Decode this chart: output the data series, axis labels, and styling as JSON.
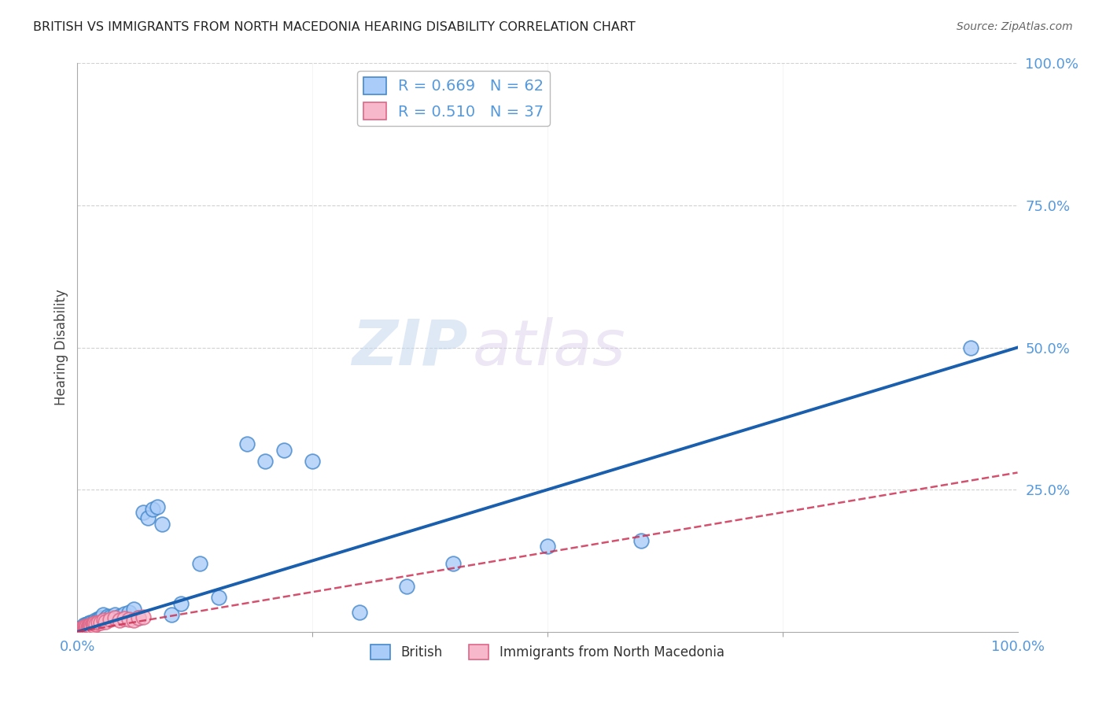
{
  "title": "BRITISH VS IMMIGRANTS FROM NORTH MACEDONIA HEARING DISABILITY CORRELATION CHART",
  "source": "Source: ZipAtlas.com",
  "ylabel": "Hearing Disability",
  "xlim": [
    0,
    1.0
  ],
  "ylim": [
    0,
    1.0
  ],
  "ytick_positions": [
    0.0,
    0.25,
    0.5,
    0.75,
    1.0
  ],
  "ytick_labels": [
    "",
    "25.0%",
    "50.0%",
    "75.0%",
    "100.0%"
  ],
  "xtick_positions": [
    0.0,
    1.0
  ],
  "xtick_labels": [
    "0.0%",
    "100.0%"
  ],
  "british_color": "#aaccf8",
  "british_edge_color": "#4488cc",
  "nmacedonia_color": "#f8b8cc",
  "nmacedonia_edge_color": "#dd6688",
  "trendline_british_color": "#1a5fad",
  "trendline_nmacedonia_color": "#cc3355",
  "british_R": 0.669,
  "british_N": 62,
  "nmacedonia_R": 0.51,
  "nmacedonia_N": 37,
  "watermark_zip": "ZIP",
  "watermark_atlas": "atlas",
  "british_scatter_x": [
    0.002,
    0.003,
    0.004,
    0.004,
    0.005,
    0.005,
    0.006,
    0.006,
    0.006,
    0.007,
    0.007,
    0.007,
    0.008,
    0.008,
    0.009,
    0.009,
    0.01,
    0.01,
    0.011,
    0.011,
    0.012,
    0.012,
    0.013,
    0.013,
    0.014,
    0.015,
    0.016,
    0.018,
    0.019,
    0.02,
    0.022,
    0.023,
    0.025,
    0.027,
    0.03,
    0.032,
    0.035,
    0.04,
    0.045,
    0.05,
    0.055,
    0.06,
    0.065,
    0.07,
    0.075,
    0.08,
    0.085,
    0.09,
    0.1,
    0.11,
    0.13,
    0.15,
    0.18,
    0.2,
    0.22,
    0.25,
    0.3,
    0.35,
    0.4,
    0.5,
    0.6,
    0.95
  ],
  "british_scatter_y": [
    0.003,
    0.005,
    0.002,
    0.007,
    0.004,
    0.008,
    0.003,
    0.006,
    0.01,
    0.005,
    0.009,
    0.012,
    0.006,
    0.01,
    0.007,
    0.011,
    0.008,
    0.013,
    0.009,
    0.014,
    0.01,
    0.015,
    0.011,
    0.016,
    0.013,
    0.017,
    0.014,
    0.018,
    0.02,
    0.018,
    0.023,
    0.022,
    0.025,
    0.03,
    0.023,
    0.028,
    0.026,
    0.03,
    0.028,
    0.032,
    0.035,
    0.04,
    0.025,
    0.21,
    0.2,
    0.215,
    0.22,
    0.19,
    0.03,
    0.05,
    0.12,
    0.06,
    0.33,
    0.3,
    0.32,
    0.3,
    0.035,
    0.08,
    0.12,
    0.15,
    0.16,
    0.5
  ],
  "nmacedonia_scatter_x": [
    0.002,
    0.003,
    0.003,
    0.004,
    0.004,
    0.005,
    0.005,
    0.006,
    0.006,
    0.007,
    0.007,
    0.008,
    0.008,
    0.009,
    0.01,
    0.01,
    0.011,
    0.012,
    0.013,
    0.014,
    0.015,
    0.016,
    0.017,
    0.018,
    0.02,
    0.022,
    0.025,
    0.028,
    0.03,
    0.035,
    0.04,
    0.045,
    0.05,
    0.055,
    0.06,
    0.065,
    0.07
  ],
  "nmacedonia_scatter_y": [
    0.002,
    0.003,
    0.004,
    0.003,
    0.005,
    0.004,
    0.006,
    0.003,
    0.007,
    0.005,
    0.008,
    0.004,
    0.009,
    0.006,
    0.005,
    0.01,
    0.008,
    0.011,
    0.009,
    0.012,
    0.01,
    0.013,
    0.011,
    0.015,
    0.013,
    0.016,
    0.017,
    0.02,
    0.018,
    0.022,
    0.025,
    0.02,
    0.023,
    0.022,
    0.02,
    0.025,
    0.026
  ],
  "background_color": "#ffffff",
  "grid_color": "#cccccc",
  "axis_label_color": "#5599dd",
  "title_color": "#222222"
}
